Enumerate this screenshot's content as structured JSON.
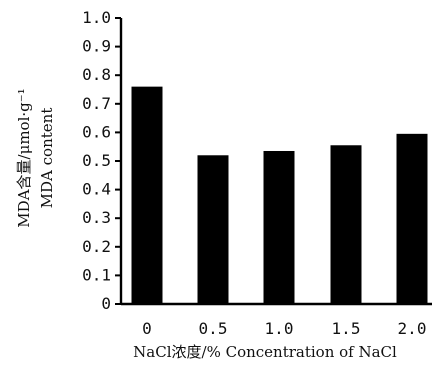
{
  "chart_data": {
    "type": "bar",
    "categories": [
      "0",
      "0.5",
      "1.0",
      "1.5",
      "2.0"
    ],
    "values": [
      0.76,
      0.52,
      0.535,
      0.555,
      0.595
    ],
    "title": "",
    "xlabel": "NaCl浓度/%  Concentration of NaCl",
    "ylabel_line1": "MDA含量/μmol·g⁻¹",
    "ylabel_line2": "MDA content",
    "ylim": [
      0,
      1.0
    ],
    "yticks": [
      "0",
      "0.1",
      "0.2",
      "0.3",
      "0.4",
      "0.5",
      "0.6",
      "0.7",
      "0.8",
      "0.9",
      "1.0"
    ],
    "grid": false,
    "legend": "none",
    "colors": {
      "bar": "#000000",
      "axis": "#000000",
      "background": "#ffffff"
    }
  }
}
